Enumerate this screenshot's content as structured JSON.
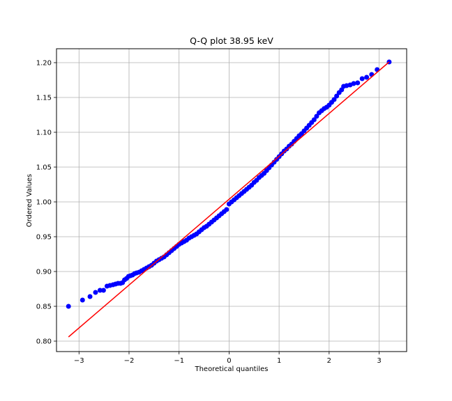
{
  "chart_data": {
    "type": "scatter",
    "title": "Q-Q plot 38.95 keV",
    "xlabel": "Theoretical quantiles",
    "ylabel": "Ordered Values",
    "xlim": [
      -3.45,
      3.55
    ],
    "ylim": [
      0.785,
      1.22
    ],
    "xticks": [
      -3,
      -2,
      -1,
      0,
      1,
      2,
      3
    ],
    "xtick_labels": [
      "−3",
      "−2",
      "−1",
      "0",
      "1",
      "2",
      "3"
    ],
    "yticks": [
      0.8,
      0.85,
      0.9,
      0.95,
      1.0,
      1.05,
      1.1,
      1.15,
      1.2
    ],
    "ytick_labels": [
      "0.80",
      "0.85",
      "0.90",
      "0.95",
      "1.00",
      "1.05",
      "1.10",
      "1.15",
      "1.20"
    ],
    "grid": true,
    "series": [
      {
        "kind": "points",
        "color": "#0000ff",
        "points": [
          [
            -3.21,
            0.85
          ],
          [
            -2.93,
            0.859
          ],
          [
            -2.78,
            0.864
          ],
          [
            -2.67,
            0.87
          ],
          [
            -2.58,
            0.873
          ],
          [
            -2.51,
            0.873
          ],
          [
            -2.44,
            0.879
          ],
          [
            -2.38,
            0.88
          ],
          [
            -2.32,
            0.881
          ],
          [
            -2.27,
            0.882
          ],
          [
            -2.22,
            0.883
          ],
          [
            -2.17,
            0.883
          ],
          [
            -2.13,
            0.884
          ],
          [
            -2.09,
            0.888
          ],
          [
            -2.05,
            0.89
          ],
          [
            -2.01,
            0.893
          ],
          [
            -1.97,
            0.894
          ],
          [
            -1.93,
            0.895
          ],
          [
            -1.89,
            0.897
          ],
          [
            -1.85,
            0.898
          ],
          [
            -1.8,
            0.899
          ],
          [
            -1.75,
            0.901
          ],
          [
            -1.7,
            0.903
          ],
          [
            -1.65,
            0.905
          ],
          [
            -1.6,
            0.907
          ],
          [
            -1.55,
            0.909
          ],
          [
            -1.5,
            0.912
          ],
          [
            -1.45,
            0.915
          ],
          [
            -1.4,
            0.917
          ],
          [
            -1.35,
            0.919
          ],
          [
            -1.3,
            0.921
          ],
          [
            -1.25,
            0.924
          ],
          [
            -1.2,
            0.927
          ],
          [
            -1.15,
            0.93
          ],
          [
            -1.1,
            0.933
          ],
          [
            -1.05,
            0.936
          ],
          [
            -1.0,
            0.939
          ],
          [
            -0.95,
            0.941
          ],
          [
            -0.9,
            0.943
          ],
          [
            -0.85,
            0.945
          ],
          [
            -0.8,
            0.948
          ],
          [
            -0.75,
            0.95
          ],
          [
            -0.7,
            0.952
          ],
          [
            -0.65,
            0.954
          ],
          [
            -0.6,
            0.957
          ],
          [
            -0.55,
            0.96
          ],
          [
            -0.5,
            0.963
          ],
          [
            -0.45,
            0.965
          ],
          [
            -0.4,
            0.968
          ],
          [
            -0.35,
            0.971
          ],
          [
            -0.3,
            0.974
          ],
          [
            -0.25,
            0.977
          ],
          [
            -0.2,
            0.98
          ],
          [
            -0.15,
            0.983
          ],
          [
            -0.1,
            0.986
          ],
          [
            -0.05,
            0.989
          ],
          [
            0.0,
            0.997
          ],
          [
            0.05,
            1.0
          ],
          [
            0.1,
            1.003
          ],
          [
            0.15,
            1.006
          ],
          [
            0.2,
            1.009
          ],
          [
            0.25,
            1.012
          ],
          [
            0.3,
            1.015
          ],
          [
            0.35,
            1.018
          ],
          [
            0.4,
            1.021
          ],
          [
            0.45,
            1.024
          ],
          [
            0.5,
            1.028
          ],
          [
            0.55,
            1.031
          ],
          [
            0.6,
            1.035
          ],
          [
            0.65,
            1.038
          ],
          [
            0.7,
            1.041
          ],
          [
            0.75,
            1.045
          ],
          [
            0.8,
            1.049
          ],
          [
            0.85,
            1.053
          ],
          [
            0.9,
            1.057
          ],
          [
            0.95,
            1.061
          ],
          [
            1.0,
            1.065
          ],
          [
            1.05,
            1.069
          ],
          [
            1.1,
            1.073
          ],
          [
            1.15,
            1.076
          ],
          [
            1.2,
            1.08
          ],
          [
            1.25,
            1.083
          ],
          [
            1.3,
            1.087
          ],
          [
            1.35,
            1.091
          ],
          [
            1.4,
            1.095
          ],
          [
            1.45,
            1.098
          ],
          [
            1.5,
            1.102
          ],
          [
            1.55,
            1.106
          ],
          [
            1.6,
            1.11
          ],
          [
            1.65,
            1.114
          ],
          [
            1.7,
            1.118
          ],
          [
            1.75,
            1.123
          ],
          [
            1.8,
            1.128
          ],
          [
            1.85,
            1.131
          ],
          [
            1.9,
            1.134
          ],
          [
            1.95,
            1.136
          ],
          [
            2.0,
            1.139
          ],
          [
            2.05,
            1.143
          ],
          [
            2.1,
            1.147
          ],
          [
            2.15,
            1.152
          ],
          [
            2.2,
            1.157
          ],
          [
            2.25,
            1.161
          ],
          [
            2.29,
            1.166
          ],
          [
            2.35,
            1.167
          ],
          [
            2.42,
            1.168
          ],
          [
            2.49,
            1.17
          ],
          [
            2.57,
            1.171
          ],
          [
            2.66,
            1.177
          ],
          [
            2.75,
            1.179
          ],
          [
            2.85,
            1.183
          ],
          [
            2.96,
            1.19
          ],
          [
            3.2,
            1.201
          ]
        ]
      },
      {
        "kind": "fit-line",
        "color": "#ff0000",
        "points": [
          [
            -3.21,
            0.806
          ],
          [
            3.2,
            1.201
          ]
        ]
      }
    ]
  }
}
